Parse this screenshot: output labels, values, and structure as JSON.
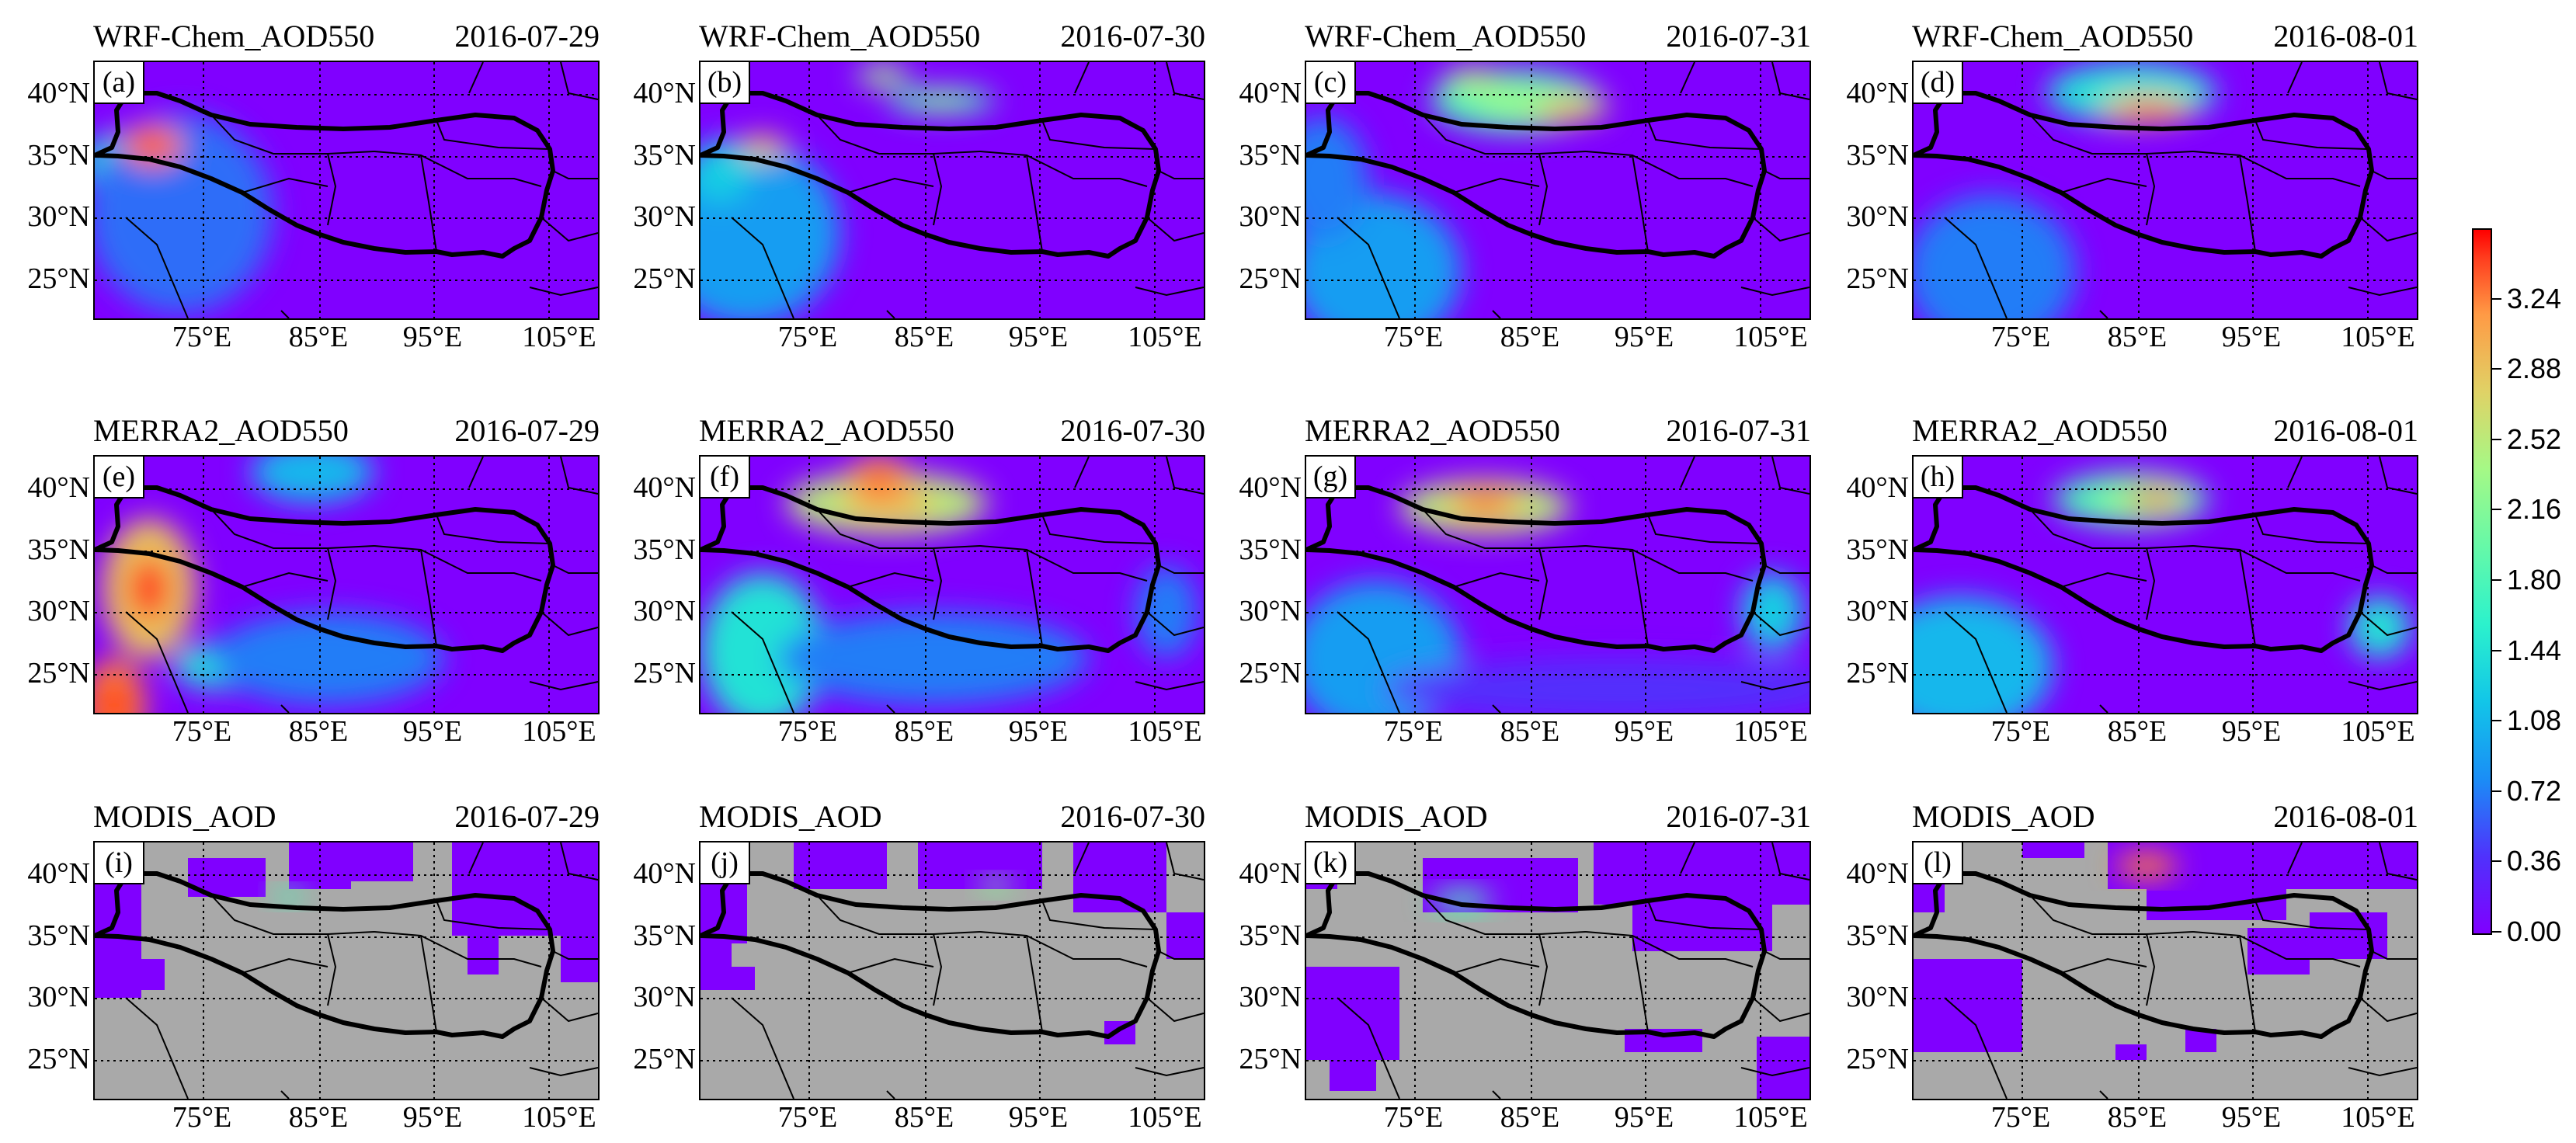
{
  "rows": [
    {
      "product": "WRF-Chem_AOD550",
      "panels": [
        {
          "letter": "(a)",
          "date": "2016-07-29"
        },
        {
          "letter": "(b)",
          "date": "2016-07-30"
        },
        {
          "letter": "(c)",
          "date": "2016-07-31"
        },
        {
          "letter": "(d)",
          "date": "2016-08-01"
        }
      ]
    },
    {
      "product": "MERRA2_AOD550",
      "panels": [
        {
          "letter": "(e)",
          "date": "2016-07-29"
        },
        {
          "letter": "(f)",
          "date": "2016-07-30"
        },
        {
          "letter": "(g)",
          "date": "2016-07-31"
        },
        {
          "letter": "(h)",
          "date": "2016-08-01"
        }
      ]
    },
    {
      "product": "MODIS_AOD",
      "panels": [
        {
          "letter": "(i)",
          "date": "2016-07-29"
        },
        {
          "letter": "(j)",
          "date": "2016-07-30"
        },
        {
          "letter": "(k)",
          "date": "2016-07-31"
        },
        {
          "letter": "(l)",
          "date": "2016-08-01"
        }
      ]
    }
  ],
  "lat_ticks": [
    "40°N",
    "35°N",
    "30°N",
    "25°N"
  ],
  "lon_ticks": [
    "75°E",
    "85°E",
    "95°E",
    "105°E"
  ],
  "colorbar": {
    "min": 0.0,
    "max": 3.6,
    "ticks": [
      "0.00",
      "0.36",
      "0.72",
      "1.08",
      "1.44",
      "1.80",
      "2.16",
      "2.52",
      "2.88",
      "3.24"
    ]
  },
  "colors": {
    "background_aod": "#8000ff",
    "missing_data": "#a9a9a9",
    "high_aod": "#ff2a00"
  }
}
